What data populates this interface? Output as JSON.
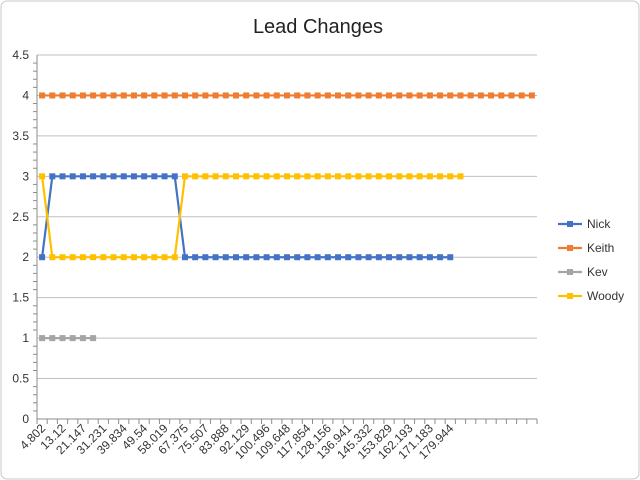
{
  "chart_data": {
    "type": "line",
    "title": "Lead Changes",
    "xlabel": "",
    "ylabel": "",
    "ylim": [
      0,
      4.5
    ],
    "yticks": [
      "0",
      "0.5",
      "1",
      "1.5",
      "2",
      "2.5",
      "3",
      "3.5",
      "4",
      "4.5"
    ],
    "grid": true,
    "legend_position": "right",
    "x_tick_labels": [
      "4.802",
      "13.12",
      "21.147",
      "31.231",
      "39.834",
      "49.54",
      "58.019",
      "67.375",
      "75.507",
      "83.888",
      "92.129",
      "100.496",
      "109.648",
      "117.854",
      "128.156",
      "136.941",
      "145.332",
      "153.829",
      "162.193",
      "171.183",
      "179.944"
    ],
    "series": [
      {
        "name": "Nick",
        "color": "#4472C4",
        "values": [
          2,
          3,
          3,
          3,
          3,
          3,
          3,
          3,
          3,
          3,
          3,
          3,
          3,
          3,
          2,
          2,
          2,
          2,
          2,
          2,
          2,
          2,
          2,
          2,
          2,
          2,
          2,
          2,
          2,
          2,
          2,
          2,
          2,
          2,
          2,
          2,
          2,
          2,
          2,
          2,
          2
        ]
      },
      {
        "name": "Keith",
        "color": "#ED7D31",
        "values": [
          4,
          4,
          4,
          4,
          4,
          4,
          4,
          4,
          4,
          4,
          4,
          4,
          4,
          4,
          4,
          4,
          4,
          4,
          4,
          4,
          4,
          4,
          4,
          4,
          4,
          4,
          4,
          4,
          4,
          4,
          4,
          4,
          4,
          4,
          4,
          4,
          4,
          4,
          4,
          4,
          4,
          4,
          4,
          4,
          4,
          4,
          4,
          4,
          4
        ]
      },
      {
        "name": "Kev",
        "color": "#A5A5A5",
        "values": [
          1,
          1,
          1,
          1,
          1,
          1
        ]
      },
      {
        "name": "Woody",
        "color": "#FFC000",
        "values": [
          3,
          2,
          2,
          2,
          2,
          2,
          2,
          2,
          2,
          2,
          2,
          2,
          2,
          2,
          3,
          3,
          3,
          3,
          3,
          3,
          3,
          3,
          3,
          3,
          3,
          3,
          3,
          3,
          3,
          3,
          3,
          3,
          3,
          3,
          3,
          3,
          3,
          3,
          3,
          3,
          3,
          3
        ]
      }
    ]
  }
}
